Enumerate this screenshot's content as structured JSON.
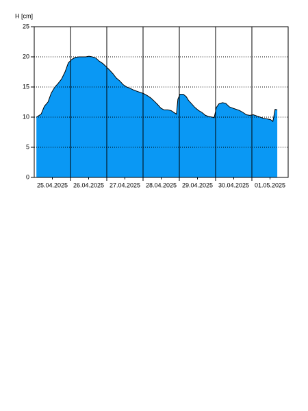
{
  "chart_data": {
    "type": "area",
    "y_label": "H [cm]",
    "color": "#0a98f4",
    "line_color": "#000000",
    "xlim": [
      0,
      7
    ],
    "ylim": [
      0,
      25
    ],
    "yticks": [
      0,
      5,
      10,
      15,
      20,
      25
    ],
    "xticks": [
      {
        "value": 0.5,
        "label": "25.04.2025"
      },
      {
        "value": 1.5,
        "label": "26.04.2025"
      },
      {
        "value": 2.5,
        "label": "27.04.2025"
      },
      {
        "value": 3.5,
        "label": "28.04.2025"
      },
      {
        "value": 4.5,
        "label": "29.04.2025"
      },
      {
        "value": 5.5,
        "label": "30.04.2025"
      },
      {
        "value": 6.5,
        "label": "01.05.2025"
      }
    ],
    "x_divisions": [
      1,
      2,
      3,
      4,
      5,
      6
    ],
    "grid": true,
    "x": [
      0.06,
      0.19,
      0.28,
      0.38,
      0.47,
      0.57,
      0.66,
      0.75,
      0.85,
      0.94,
      1.04,
      1.13,
      1.23,
      1.32,
      1.42,
      1.51,
      1.6,
      1.7,
      1.79,
      1.89,
      1.98,
      2.08,
      2.17,
      2.26,
      2.36,
      2.45,
      2.55,
      2.64,
      2.74,
      2.83,
      2.92,
      3.02,
      3.11,
      3.21,
      3.3,
      3.4,
      3.49,
      3.58,
      3.68,
      3.77,
      3.87,
      3.92,
      3.96,
      4.02,
      4.11,
      4.19,
      4.25,
      4.34,
      4.43,
      4.53,
      4.62,
      4.72,
      4.81,
      4.91,
      4.96,
      5.02,
      5.09,
      5.19,
      5.28,
      5.38,
      5.47,
      5.57,
      5.66,
      5.75,
      5.85,
      5.94,
      6.04,
      6.13,
      6.23,
      6.32,
      6.42,
      6.51,
      6.58,
      6.64,
      6.7
    ],
    "values": [
      10.0,
      10.5,
      11.8,
      12.5,
      14.0,
      15.0,
      15.6,
      16.3,
      17.5,
      19.0,
      19.6,
      19.9,
      20.0,
      20.0,
      20.0,
      20.1,
      20.0,
      19.8,
      19.3,
      18.9,
      18.4,
      17.8,
      17.2,
      16.5,
      16.0,
      15.4,
      15.0,
      14.8,
      14.5,
      14.3,
      14.1,
      13.9,
      13.6,
      13.2,
      12.7,
      12.1,
      11.5,
      11.2,
      11.2,
      11.1,
      10.7,
      10.5,
      13.0,
      13.8,
      13.8,
      13.4,
      12.8,
      12.2,
      11.6,
      11.1,
      10.8,
      10.3,
      10.1,
      10.0,
      9.9,
      11.6,
      12.2,
      12.4,
      12.3,
      11.7,
      11.5,
      11.3,
      11.1,
      10.8,
      10.4,
      10.3,
      10.4,
      10.2,
      10.0,
      9.8,
      9.7,
      9.6,
      9.3,
      11.3,
      11.2
    ]
  }
}
